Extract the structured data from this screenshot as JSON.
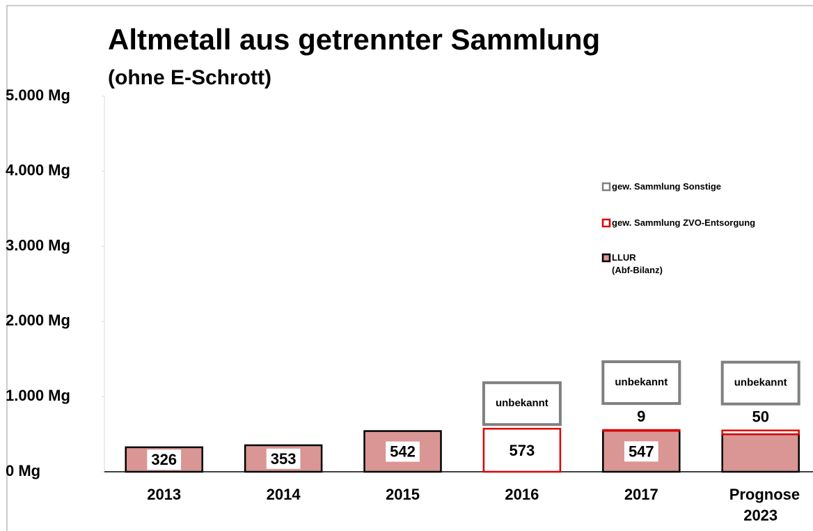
{
  "chart_data": {
    "type": "stacked_bar",
    "title": "Altmetall aus getrennter Sammlung",
    "subtitle": "(ohne E-Schrott)",
    "categories": [
      "2013",
      "2014",
      "2015",
      "2016",
      "2017",
      "Prognose 2023"
    ],
    "series": [
      {
        "name": "LLUR\n(Abf-Bilanz)",
        "color": "#d99694",
        "stroke": "#000000",
        "values": [
          326,
          353,
          542,
          null,
          547,
          500
        ],
        "value_labels": [
          "326",
          "353",
          "542",
          null,
          "547",
          null
        ]
      },
      {
        "name": "gew. Sammlung ZVO-Entsorgung",
        "color": "#ffffff",
        "stroke": "#e00000",
        "values": [
          null,
          null,
          null,
          573,
          9,
          50
        ],
        "value_labels": [
          null,
          null,
          null,
          "573",
          "9",
          "50"
        ]
      },
      {
        "name": "gew. Sammlung Sonstige",
        "color": "#ffffff",
        "stroke": "#808080",
        "values": [
          null,
          null,
          null,
          null,
          null,
          null
        ],
        "value_labels": [
          null,
          null,
          null,
          "unbekannt",
          "unbekannt",
          "unbekannt"
        ]
      }
    ],
    "ylim": [
      0,
      5000
    ],
    "yticks": [
      {
        "value": 0,
        "label": "0 Mg"
      },
      {
        "value": 1000,
        "label": "1.000 Mg"
      },
      {
        "value": 2000,
        "label": "2.000 Mg"
      },
      {
        "value": 3000,
        "label": "3.000 Mg"
      },
      {
        "value": 4000,
        "label": "4.000 Mg"
      },
      {
        "value": 5000,
        "label": "5.000 Mg"
      }
    ]
  }
}
